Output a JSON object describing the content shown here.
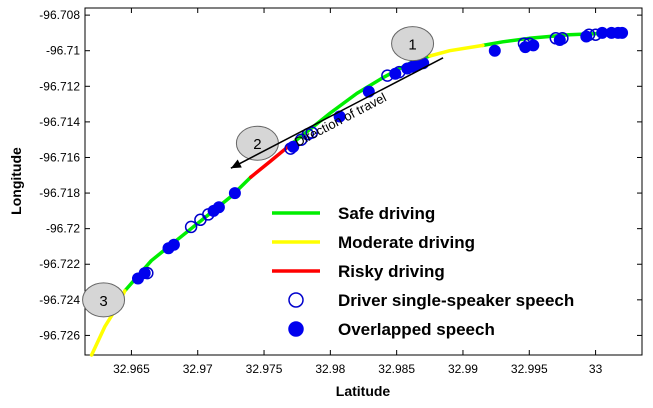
{
  "chart_data": {
    "type": "scatter",
    "xlabel": "Latitude",
    "ylabel": "Longitude",
    "xlim": [
      32.9615,
      33.0035
    ],
    "ylim": [
      -96.7271,
      -96.7076
    ],
    "x_ticks": [
      {
        "value": 32.965,
        "label": "32.965"
      },
      {
        "value": 32.97,
        "label": "32.97"
      },
      {
        "value": 32.975,
        "label": "32.975"
      },
      {
        "value": 32.98,
        "label": "32.98"
      },
      {
        "value": 32.985,
        "label": "32.985"
      },
      {
        "value": 32.99,
        "label": "32.99"
      },
      {
        "value": 32.995,
        "label": "32.995"
      },
      {
        "value": 33.0,
        "label": "33"
      }
    ],
    "y_ticks": [
      {
        "value": -96.708,
        "label": "-96.708"
      },
      {
        "value": -96.71,
        "label": "-96.71"
      },
      {
        "value": -96.712,
        "label": "-96.712"
      },
      {
        "value": -96.714,
        "label": "-96.714"
      },
      {
        "value": -96.716,
        "label": "-96.716"
      },
      {
        "value": -96.718,
        "label": "-96.718"
      },
      {
        "value": -96.72,
        "label": "-96.72"
      },
      {
        "value": -96.722,
        "label": "-96.722"
      },
      {
        "value": -96.724,
        "label": "-96.724"
      },
      {
        "value": -96.726,
        "label": "-96.726"
      }
    ],
    "grid": false,
    "legend_position": "bottom-right",
    "series": [
      {
        "name": "Safe driving",
        "kind": "line",
        "color": "#00ee00",
        "segments": [
          [
            [
              32.9645,
              -96.7235
            ],
            [
              32.9665,
              -96.7218
            ],
            [
              32.9685,
              -96.7206
            ],
            [
              32.9705,
              -96.7194
            ],
            [
              32.9725,
              -96.7182
            ],
            [
              32.974,
              -96.7171
            ]
          ],
          [
            [
              32.9768,
              -96.7154
            ],
            [
              32.978,
              -96.7147
            ],
            [
              32.98,
              -96.7135
            ],
            [
              32.982,
              -96.7124
            ],
            [
              32.984,
              -96.7115
            ],
            [
              32.986,
              -96.7107
            ],
            [
              32.9875,
              -96.7103
            ]
          ],
          [
            [
              32.9915,
              -96.7097
            ],
            [
              32.993,
              -96.7095
            ],
            [
              32.995,
              -96.7093
            ],
            [
              32.998,
              -96.7091
            ],
            [
              33.0015,
              -96.709
            ]
          ]
        ]
      },
      {
        "name": "Moderate driving",
        "kind": "line",
        "color": "#ffff00",
        "segments": [
          [
            [
              32.962,
              -96.7271
            ],
            [
              32.963,
              -96.7255
            ],
            [
              32.964,
              -96.7243
            ],
            [
              32.9645,
              -96.7235
            ]
          ],
          [
            [
              32.9875,
              -96.7103
            ],
            [
              32.989,
              -96.71
            ],
            [
              32.9915,
              -96.7097
            ]
          ]
        ]
      },
      {
        "name": "Risky driving",
        "kind": "line",
        "color": "#ff0000",
        "segments": [
          [
            [
              32.974,
              -96.7171
            ],
            [
              32.9755,
              -96.7162
            ],
            [
              32.9768,
              -96.7154
            ]
          ]
        ]
      },
      {
        "name": "Driver single-speaker speech",
        "kind": "marker",
        "marker": "open-circle",
        "color": "#0000cc",
        "points": [
          [
            32.9662,
            -96.7225
          ],
          [
            32.9695,
            -96.7199
          ],
          [
            32.9702,
            -96.7195
          ],
          [
            32.9708,
            -96.7192
          ],
          [
            32.977,
            -96.7155
          ],
          [
            32.9778,
            -96.715
          ],
          [
            32.9783,
            -96.7147
          ],
          [
            32.9786,
            -96.7146
          ],
          [
            32.9843,
            -96.7114
          ],
          [
            32.9852,
            -96.7112
          ],
          [
            32.9868,
            -96.7107
          ],
          [
            32.9946,
            -96.7096
          ],
          [
            32.995,
            -96.7096
          ],
          [
            32.997,
            -96.7093
          ],
          [
            32.9975,
            -96.7093
          ],
          [
            32.9995,
            -96.7091
          ],
          [
            33.0,
            -96.7091
          ]
        ]
      },
      {
        "name": "Overlapped speech",
        "kind": "marker",
        "marker": "filled-circle",
        "color": "#0000ee",
        "points": [
          [
            32.9655,
            -96.7228
          ],
          [
            32.966,
            -96.7225
          ],
          [
            32.9678,
            -96.7211
          ],
          [
            32.9682,
            -96.7209
          ],
          [
            32.9712,
            -96.719
          ],
          [
            32.9716,
            -96.7188
          ],
          [
            32.9728,
            -96.718
          ],
          [
            32.9772,
            -96.7154
          ],
          [
            32.9807,
            -96.7137
          ],
          [
            32.9829,
            -96.7123
          ],
          [
            32.9849,
            -96.7113
          ],
          [
            32.9858,
            -96.711
          ],
          [
            32.9862,
            -96.7109
          ],
          [
            32.9866,
            -96.7108
          ],
          [
            32.987,
            -96.7107
          ],
          [
            32.9924,
            -96.71
          ],
          [
            32.9947,
            -96.7098
          ],
          [
            32.9953,
            -96.7097
          ],
          [
            32.9973,
            -96.7094
          ],
          [
            32.9993,
            -96.7092
          ],
          [
            33.0005,
            -96.709
          ],
          [
            33.0012,
            -96.709
          ],
          [
            33.0017,
            -96.709
          ],
          [
            33.002,
            -96.709
          ]
        ]
      }
    ],
    "regions": [
      {
        "label": "1",
        "x": 32.9862,
        "y": -96.7096
      },
      {
        "label": "2",
        "x": 32.9745,
        "y": -96.7152
      },
      {
        "label": "3",
        "x": 32.9629,
        "y": -96.724
      }
    ],
    "annotation": {
      "text": "Direction of travel",
      "arrow_from": [
        32.9885,
        -96.7104
      ],
      "arrow_to": [
        32.9725,
        -96.7166
      ]
    },
    "legend": [
      {
        "label": "Safe driving",
        "symbol": "line",
        "color": "#00ee00"
      },
      {
        "label": "Moderate driving",
        "symbol": "line",
        "color": "#ffff00"
      },
      {
        "label": "Risky driving",
        "symbol": "line",
        "color": "#ff0000"
      },
      {
        "label": "Driver single-speaker speech",
        "symbol": "open-circle",
        "color": "#0000cc"
      },
      {
        "label": "Overlapped speech",
        "symbol": "filled-circle",
        "color": "#0000ee"
      }
    ]
  }
}
